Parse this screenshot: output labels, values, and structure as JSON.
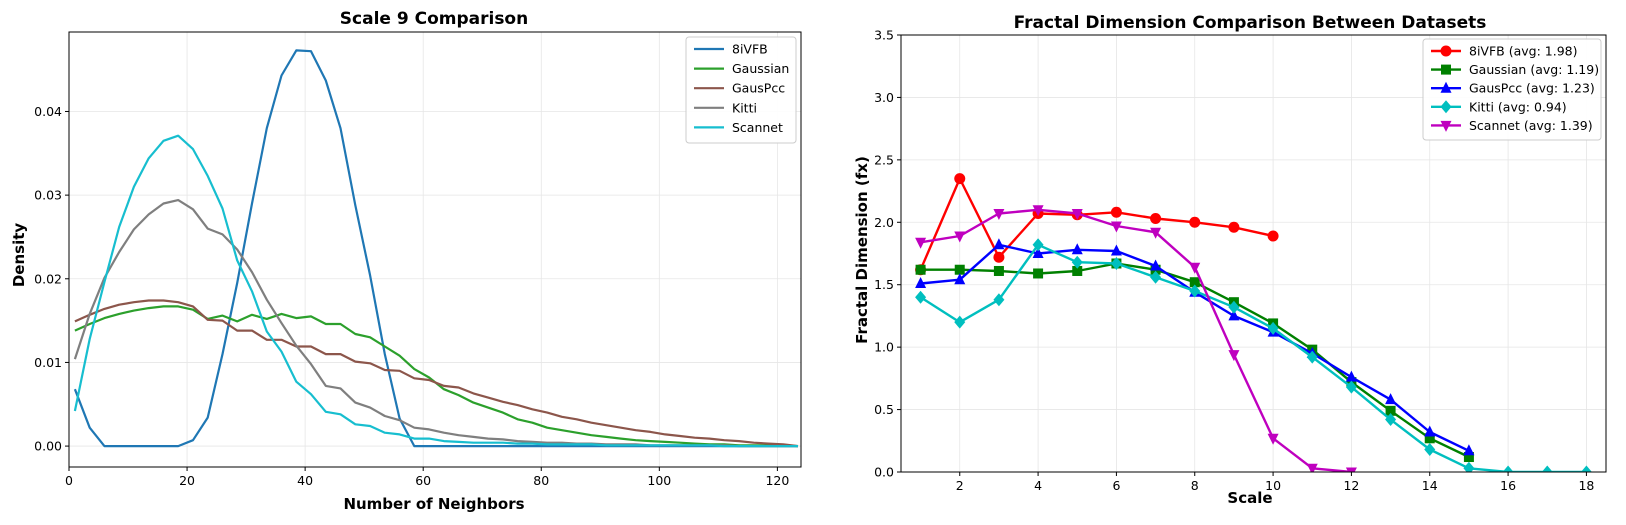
{
  "chart_data": [
    {
      "type": "line",
      "title": "Scale 9 Comparison",
      "xlabel": "Number of Neighbors",
      "ylabel": "Density",
      "xlim": [
        0,
        124
      ],
      "ylim": [
        -0.0025,
        0.0495
      ],
      "xticks": [
        0,
        20,
        40,
        60,
        80,
        100,
        120
      ],
      "xtick_labels": [
        "0",
        "20",
        "40",
        "60",
        "80",
        "100",
        "120"
      ],
      "yticks": [
        0,
        0.01,
        0.02,
        0.03,
        0.04
      ],
      "ytick_labels": [
        "0.00",
        "0.01",
        "0.02",
        "0.03",
        "0.04"
      ],
      "grid": true,
      "legend_position": "top-right",
      "x": [
        1,
        3.5,
        6,
        8.5,
        11,
        13.5,
        16,
        18.5,
        21,
        23.5,
        26,
        28.5,
        31,
        33.5,
        36,
        38.5,
        41,
        43.5,
        46,
        48.5,
        51,
        53.5,
        56,
        58.5,
        61,
        63.5,
        66,
        68.5,
        71,
        73.5,
        76,
        78.5,
        81,
        83.5,
        86,
        88.5,
        91,
        93.5,
        96,
        98.5,
        101,
        103.5,
        106,
        108.5,
        111,
        113.5,
        116,
        118.5,
        121,
        123.5
      ],
      "series": [
        {
          "name": "8iVFB",
          "color": "#1f77b4",
          "values": [
            0.0068,
            0.0022,
            0,
            0,
            0,
            0,
            0,
            0,
            0.0007,
            0.0034,
            0.011,
            0.0195,
            0.029,
            0.038,
            0.0443,
            0.0473,
            0.0472,
            0.0437,
            0.038,
            0.0288,
            0.0204,
            0.011,
            0.0033,
            0,
            0,
            0,
            0,
            0,
            0,
            0,
            0,
            0,
            0,
            0,
            0,
            0,
            0,
            0,
            0,
            0,
            0,
            0,
            0,
            0,
            0,
            0,
            0,
            0,
            0,
            0
          ]
        },
        {
          "name": "Gaussian",
          "color": "#2ca02c",
          "values": [
            0.0138,
            0.0146,
            0.0153,
            0.0158,
            0.0162,
            0.0165,
            0.0167,
            0.0167,
            0.0163,
            0.0152,
            0.0156,
            0.0149,
            0.0157,
            0.0152,
            0.0158,
            0.0153,
            0.0155,
            0.0146,
            0.0146,
            0.0134,
            0.013,
            0.0119,
            0.0108,
            0.0092,
            0.0082,
            0.0068,
            0.0061,
            0.0052,
            0.0046,
            0.004,
            0.0032,
            0.0028,
            0.0022,
            0.0019,
            0.0016,
            0.0013,
            0.0011,
            0.0009,
            0.0007,
            0.0006,
            0.0005,
            0.0004,
            0.0003,
            0.0002,
            0.0002,
            0.0001,
            0.0001,
            0.0001,
            0.0001,
            0
          ]
        },
        {
          "name": "GausPcc",
          "color": "#8c564b",
          "values": [
            0.0149,
            0.0157,
            0.0164,
            0.0169,
            0.0172,
            0.0174,
            0.0174,
            0.0172,
            0.0167,
            0.0151,
            0.015,
            0.0138,
            0.0138,
            0.0127,
            0.0127,
            0.0119,
            0.0119,
            0.011,
            0.011,
            0.0101,
            0.0099,
            0.0091,
            0.009,
            0.0081,
            0.0079,
            0.0072,
            0.007,
            0.0063,
            0.0058,
            0.0053,
            0.0049,
            0.0044,
            0.004,
            0.0035,
            0.0032,
            0.0028,
            0.0025,
            0.0022,
            0.0019,
            0.0017,
            0.0014,
            0.0012,
            0.001,
            0.0009,
            0.0007,
            0.0006,
            0.0004,
            0.0003,
            0.0002,
            0
          ]
        },
        {
          "name": "Kitti",
          "color": "#7f7f7f",
          "values": [
            0.0104,
            0.0158,
            0.0201,
            0.0232,
            0.0259,
            0.0277,
            0.029,
            0.0294,
            0.0283,
            0.026,
            0.0253,
            0.0235,
            0.0208,
            0.0175,
            0.0147,
            0.012,
            0.0098,
            0.0072,
            0.0069,
            0.0052,
            0.0046,
            0.0036,
            0.0031,
            0.0022,
            0.002,
            0.0016,
            0.0013,
            0.0011,
            0.0009,
            0.0008,
            0.0006,
            0.0005,
            0.0004,
            0.0004,
            0.0003,
            0.0003,
            0.0002,
            0.0002,
            0.0002,
            0.0001,
            0.0001,
            0.0001,
            0.0001,
            0.0001,
            0.0001,
            0,
            0,
            0,
            0,
            0
          ]
        },
        {
          "name": "Scannet",
          "color": "#17becf",
          "values": [
            0.0042,
            0.0128,
            0.0196,
            0.0262,
            0.031,
            0.0344,
            0.0365,
            0.0371,
            0.0355,
            0.0323,
            0.0284,
            0.0222,
            0.0185,
            0.0137,
            0.0113,
            0.0077,
            0.0062,
            0.0041,
            0.0038,
            0.0026,
            0.0024,
            0.0016,
            0.0014,
            0.0009,
            0.0009,
            0.0006,
            0.0005,
            0.0004,
            0.0004,
            0.0004,
            0.0003,
            0.0003,
            0.0002,
            0.0002,
            0.0002,
            0.0002,
            0.0001,
            0.0001,
            0.0001,
            0.0001,
            0.0001,
            0.0001,
            0.0001,
            0.0001,
            0,
            0,
            0,
            0,
            0,
            0
          ]
        }
      ]
    },
    {
      "type": "line",
      "title": "Fractal Dimension Comparison Between Datasets",
      "xlabel": "Scale",
      "ylabel": "Fractal Dimension (fx)",
      "xlim": [
        0.5,
        18.5
      ],
      "ylim": [
        0,
        3.5
      ],
      "xticks": [
        2,
        4,
        6,
        8,
        10,
        12,
        14,
        16,
        18
      ],
      "xtick_labels": [
        "2",
        "4",
        "6",
        "8",
        "10",
        "12",
        "14",
        "16",
        "18"
      ],
      "yticks": [
        0,
        0.5,
        1.0,
        1.5,
        2.0,
        2.5,
        3.0,
        3.5
      ],
      "ytick_labels": [
        "0.0",
        "0.5",
        "1.0",
        "1.5",
        "2.0",
        "2.5",
        "3.0",
        "3.5"
      ],
      "grid": true,
      "legend_position": "top-right",
      "series": [
        {
          "name": "8iVFB (avg: 1.98)",
          "color": "#ff0000",
          "marker": "circle",
          "x": [
            1,
            2,
            3,
            4,
            5,
            6,
            7,
            8,
            9,
            10
          ],
          "values": [
            1.62,
            2.35,
            1.72,
            2.07,
            2.06,
            2.08,
            2.03,
            2.0,
            1.96,
            1.89
          ]
        },
        {
          "name": "Gaussian (avg: 1.19)",
          "color": "#008000",
          "marker": "square",
          "x": [
            1,
            2,
            3,
            4,
            5,
            6,
            7,
            8,
            9,
            10,
            11,
            12,
            13,
            14,
            15
          ],
          "values": [
            1.62,
            1.62,
            1.61,
            1.59,
            1.61,
            1.67,
            1.62,
            1.52,
            1.36,
            1.19,
            0.98,
            0.72,
            0.49,
            0.27,
            0.12
          ]
        },
        {
          "name": "GausPcc (avg: 1.23)",
          "color": "#0000ff",
          "marker": "triangle-up",
          "x": [
            1,
            2,
            3,
            4,
            5,
            6,
            7,
            8,
            9,
            10,
            11,
            12,
            13,
            14,
            15
          ],
          "values": [
            1.51,
            1.54,
            1.82,
            1.75,
            1.78,
            1.77,
            1.65,
            1.44,
            1.25,
            1.12,
            0.95,
            0.76,
            0.58,
            0.32,
            0.17
          ]
        },
        {
          "name": "Kitti (avg: 0.94)",
          "color": "#00bfbf",
          "marker": "diamond",
          "x": [
            1,
            2,
            3,
            4,
            5,
            6,
            7,
            8,
            9,
            10,
            11,
            12,
            13,
            14,
            15,
            16,
            17,
            18
          ],
          "values": [
            1.4,
            1.2,
            1.38,
            1.82,
            1.68,
            1.67,
            1.56,
            1.45,
            1.32,
            1.15,
            0.92,
            0.68,
            0.42,
            0.18,
            0.03,
            0.0,
            0.0,
            0.0
          ]
        },
        {
          "name": "Scannet (avg: 1.39)",
          "color": "#bf00bf",
          "marker": "triangle-down",
          "x": [
            1,
            2,
            3,
            4,
            5,
            6,
            7,
            8,
            9,
            10,
            11,
            12
          ],
          "values": [
            1.84,
            1.89,
            2.07,
            2.1,
            2.07,
            1.97,
            1.92,
            1.64,
            0.94,
            0.27,
            0.03,
            0.0
          ]
        }
      ]
    }
  ]
}
